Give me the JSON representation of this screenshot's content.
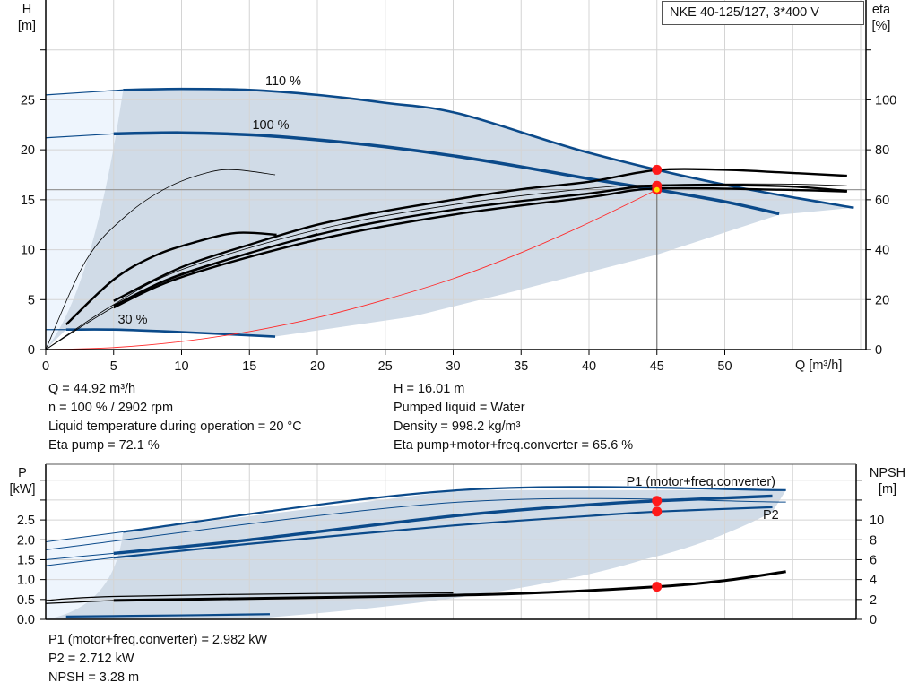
{
  "title": "NKE 40-125/127, 3*400 V",
  "colors": {
    "curve_blue": "#0b4a8a",
    "region": "#d0dbe7",
    "region_light": "#eef5fd",
    "grid": "#d4d4d4",
    "duty_point": "#ff1a1a",
    "system_curve": "#ff2a2a"
  },
  "info_top": {
    "left": [
      "Q = 44.92 m³/h",
      "n = 100 % / 2902 rpm",
      "Liquid temperature during operation = 20 °C",
      "Eta pump = 72.1 %"
    ],
    "right": [
      "H = 16.01 m",
      "Pumped liquid = Water",
      "Density = 998.2 kg/m³",
      "Eta pump+motor+freq.converter = 65.6 %"
    ]
  },
  "info_bottom": [
    "P1 (motor+freq.converter) = 2.982 kW",
    "P2 = 2.712 kW",
    "NPSH = 3.28 m"
  ],
  "chart_data": [
    {
      "type": "line",
      "xlabel": "Q [m³/h]",
      "ylabel": "H\n[m]",
      "y2label": "eta\n[%]",
      "xlim": [
        0,
        60.5
      ],
      "ylim": [
        0,
        35
      ],
      "y2lim": [
        0,
        140
      ],
      "xticks": [
        0,
        5,
        10,
        15,
        20,
        25,
        30,
        35,
        40,
        45,
        50
      ],
      "yticks": [
        0,
        5,
        10,
        15,
        20,
        25
      ],
      "y2ticks": [
        0,
        20,
        40,
        60,
        80,
        100
      ],
      "grid": true,
      "annotations": [
        "110 %",
        "100 %",
        "30 %"
      ],
      "series": [
        {
          "kind": "head",
          "label": "110 %",
          "axis": "H",
          "points": [
            [
              5.7,
              26.0
            ],
            [
              10,
              26.1
            ],
            [
              15,
              26.0
            ],
            [
              20,
              25.5
            ],
            [
              25,
              24.7
            ],
            [
              30.5,
              23.6
            ],
            [
              40,
              19.7
            ],
            [
              50,
              16.5
            ],
            [
              59.5,
              14.2
            ]
          ]
        },
        {
          "kind": "head-ext",
          "points": [
            [
              0,
              25.5
            ],
            [
              5.7,
              26.0
            ]
          ]
        },
        {
          "kind": "head",
          "label": "100 %",
          "axis": "H",
          "points": [
            [
              5,
              21.6
            ],
            [
              10,
              21.7
            ],
            [
              15,
              21.5
            ],
            [
              20,
              21.0
            ],
            [
              25,
              20.3
            ],
            [
              30,
              19.4
            ],
            [
              35,
              18.3
            ],
            [
              40,
              17.1
            ],
            [
              45,
              16.0
            ],
            [
              50,
              14.8
            ],
            [
              54,
              13.6
            ]
          ]
        },
        {
          "kind": "head-ext",
          "points": [
            [
              0,
              21.2
            ],
            [
              5,
              21.6
            ]
          ]
        },
        {
          "kind": "head",
          "label": "30 %",
          "axis": "H",
          "points": [
            [
              1.5,
              2.0
            ],
            [
              5,
              2.0
            ],
            [
              10,
              1.75
            ],
            [
              16.9,
              1.3
            ]
          ]
        },
        {
          "kind": "head-ext",
          "points": [
            [
              0,
              2.0
            ],
            [
              1.5,
              2.0
            ]
          ]
        },
        {
          "kind": "eta",
          "axis": "eta",
          "points": [
            [
              1.5,
              10
            ],
            [
              5,
              28
            ],
            [
              8,
              37.5
            ],
            [
              11,
              43
            ],
            [
              14,
              46.7
            ],
            [
              17,
              46
            ]
          ]
        },
        {
          "kind": "eta-thin",
          "axis": "eta",
          "points": [
            [
              0,
              0
            ],
            [
              3,
              36
            ],
            [
              6,
              54
            ],
            [
              9,
              65
            ],
            [
              12,
              71
            ],
            [
              14,
              72
            ],
            [
              16.9,
              70
            ]
          ]
        },
        {
          "kind": "eta",
          "axis": "eta",
          "points": [
            [
              5,
              19.5
            ],
            [
              10,
              33
            ],
            [
              15,
              42
            ],
            [
              20,
              50
            ],
            [
              25,
              55.5
            ],
            [
              30,
              60
            ],
            [
              35,
              64.2
            ],
            [
              40,
              67.2
            ],
            [
              45,
              71.9
            ],
            [
              50,
              72
            ],
            [
              54,
              71
            ],
            [
              59,
              69.6
            ]
          ]
        },
        {
          "kind": "eta-thin",
          "axis": "eta",
          "points": [
            [
              0,
              0
            ],
            [
              5,
              18
            ],
            [
              10,
              32
            ],
            [
              20,
              48
            ],
            [
              30,
              58
            ],
            [
              40,
              64.5
            ],
            [
              45,
              66
            ],
            [
              54,
              66.3
            ],
            [
              59,
              65.6
            ]
          ]
        },
        {
          "kind": "eta",
          "axis": "eta",
          "points": [
            [
              5,
              17.5
            ],
            [
              10,
              30
            ],
            [
              20,
              46
            ],
            [
              30,
              56
            ],
            [
              40,
              62.5
            ],
            [
              45,
              65.6
            ],
            [
              54,
              65.5
            ],
            [
              59,
              63.5
            ]
          ]
        },
        {
          "kind": "eta",
          "axis": "eta",
          "points": [
            [
              5,
              16.8
            ],
            [
              10,
              29
            ],
            [
              20,
              44
            ],
            [
              30,
              54
            ],
            [
              40,
              61
            ],
            [
              45,
              64.5
            ],
            [
              54,
              64
            ],
            [
              59,
              63.3
            ]
          ]
        },
        {
          "kind": "eta-thin",
          "axis": "eta",
          "points": [
            [
              0,
              0
            ],
            [
              5,
              17
            ],
            [
              10,
              30.5
            ],
            [
              20,
              46.5
            ]
          ]
        },
        {
          "kind": "system",
          "label": "system curve",
          "axis": "H",
          "points": [
            [
              0,
              0
            ],
            [
              5,
              0.2
            ],
            [
              10,
              0.8
            ],
            [
              15,
              1.8
            ],
            [
              20,
              3.2
            ],
            [
              25,
              5.0
            ],
            [
              30,
              7.1
            ],
            [
              35,
              9.7
            ],
            [
              40,
              12.7
            ],
            [
              45,
              16.01
            ]
          ]
        }
      ],
      "duty_point": {
        "Q": 44.92,
        "H": 16.01
      },
      "markers": [
        {
          "Q": 45,
          "H": 18.0
        },
        {
          "Q": 45,
          "H": 16.4
        },
        {
          "Q": 45,
          "H": 16.0
        }
      ]
    },
    {
      "type": "line",
      "ylabel": "P\n[kW]",
      "y2label": "NPSH\n[m]",
      "xlim": [
        0,
        59.8
      ],
      "ylim": [
        0,
        3.9
      ],
      "y2lim": [
        0,
        15.6
      ],
      "yticks": [
        "0.0",
        "0.5",
        "1.0",
        "1.5",
        "2.0",
        "2.5"
      ],
      "y2ticks": [
        0,
        2,
        4,
        6,
        8,
        10
      ],
      "grid": true,
      "series": [
        {
          "kind": "power",
          "label": "P1 (motor+freq.converter)",
          "axis": "P",
          "points": [
            [
              5.7,
              2.2
            ],
            [
              30.5,
              3.25
            ],
            [
              54.5,
              3.25
            ]
          ]
        },
        {
          "kind": "power-ext",
          "points": [
            [
              0,
              1.95
            ],
            [
              5.7,
              2.2
            ]
          ]
        },
        {
          "kind": "power-thin",
          "axis": "P",
          "points": [
            [
              0,
              1.75
            ],
            [
              30.5,
              2.95
            ],
            [
              54.5,
              2.95
            ]
          ]
        },
        {
          "kind": "power-thick",
          "axis": "P",
          "points": [
            [
              5,
              1.66
            ],
            [
              15,
              2.0
            ],
            [
              30,
              2.6
            ],
            [
              40,
              2.88
            ],
            [
              45,
              2.98
            ],
            [
              53.5,
              3.1
            ]
          ]
        },
        {
          "kind": "power-ext",
          "points": [
            [
              0,
              1.5
            ],
            [
              5,
              1.66
            ]
          ]
        },
        {
          "kind": "power",
          "label": "P2",
          "axis": "P",
          "points": [
            [
              5,
              1.55
            ],
            [
              15,
              1.9
            ],
            [
              30,
              2.36
            ],
            [
              40,
              2.6
            ],
            [
              45,
              2.71
            ],
            [
              53.5,
              2.82
            ]
          ]
        },
        {
          "kind": "power-ext",
          "points": [
            [
              0,
              1.35
            ],
            [
              5,
              1.55
            ]
          ]
        },
        {
          "kind": "power",
          "axis": "P",
          "points": [
            [
              1.5,
              0.07
            ],
            [
              10,
              0.1
            ],
            [
              16.5,
              0.13
            ]
          ]
        },
        {
          "kind": "npsh",
          "axis": "NPSH",
          "points": [
            [
              5,
              1.9
            ],
            [
              15,
              2.1
            ],
            [
              25,
              2.3
            ],
            [
              35,
              2.6
            ],
            [
              45,
              3.28
            ],
            [
              50,
              3.9
            ],
            [
              54.5,
              4.8
            ]
          ]
        },
        {
          "kind": "npsh-thin",
          "axis": "NPSH",
          "points": [
            [
              0,
              1.9
            ],
            [
              5,
              2.3
            ],
            [
              20,
              2.6
            ],
            [
              30,
              2.65
            ]
          ]
        },
        {
          "kind": "npsh-thin",
          "axis": "NPSH",
          "points": [
            [
              0,
              1.6
            ],
            [
              5,
              1.9
            ]
          ]
        }
      ],
      "markers": [
        {
          "axis": "P",
          "value": 2.982
        },
        {
          "axis": "P",
          "value": 2.712
        },
        {
          "axis": "NPSH",
          "value": 3.28
        }
      ],
      "duty_Q": 45
    }
  ]
}
